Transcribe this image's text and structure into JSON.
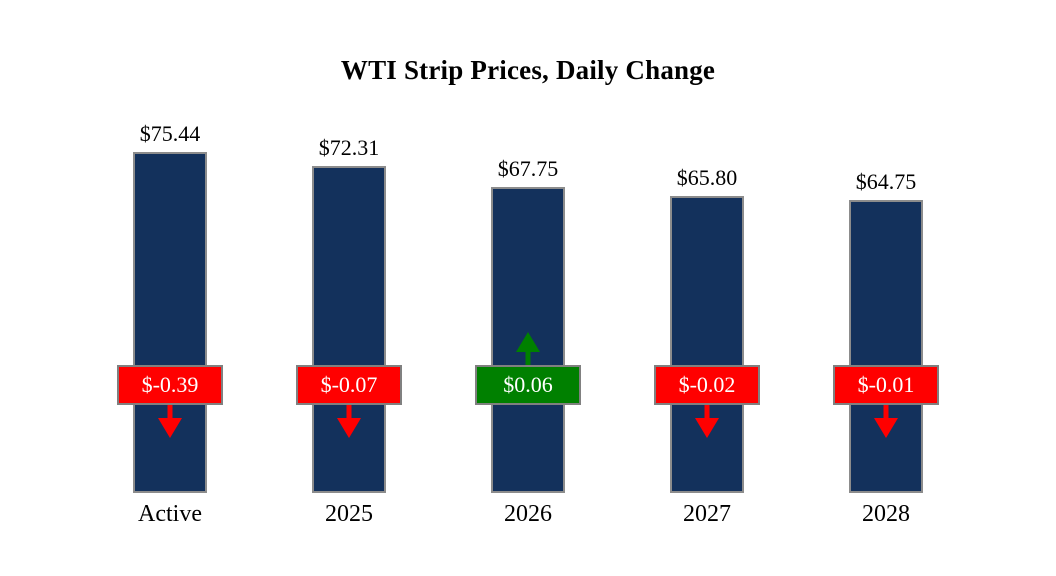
{
  "title": "WTI Strip Prices, Daily Change",
  "chart_data": {
    "type": "bar",
    "title": "WTI Strip Prices, Daily Change",
    "categories": [
      "Active",
      "2025",
      "2026",
      "2027",
      "2028"
    ],
    "values": [
      75.44,
      72.31,
      67.75,
      65.8,
      64.75
    ],
    "value_labels": [
      "$75.44",
      "$72.31",
      "$67.75",
      "$65.80",
      "$64.75"
    ],
    "changes": [
      -0.39,
      -0.07,
      0.06,
      -0.02,
      -0.01
    ],
    "change_labels": [
      "$-0.39",
      "$-0.07",
      "$0.06",
      "$-0.02",
      "$-0.01"
    ],
    "change_directions": [
      "down",
      "down",
      "up",
      "down",
      "down"
    ],
    "xlabel": "",
    "ylabel": "",
    "ylim": [
      0,
      80
    ],
    "grid": false,
    "legend": false,
    "colors": {
      "bar_fill": "#13315c",
      "bar_border": "#8c8c8c",
      "negative_badge": "#ff0000",
      "positive_badge": "#008000",
      "negative_arrow": "#ff0000",
      "positive_arrow": "#008000",
      "badge_border": "#808080",
      "badge_text": "#ffffff",
      "label_text": "#000000"
    }
  }
}
